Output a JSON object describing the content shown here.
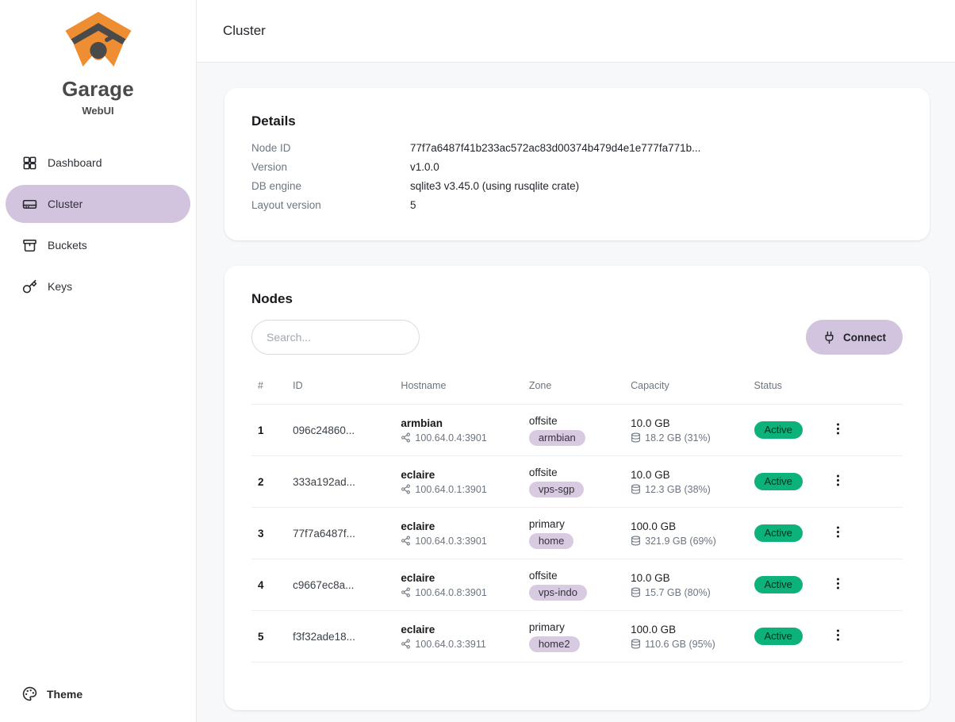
{
  "sidebar": {
    "logo_title": "Garage",
    "logo_subtitle": "WebUI",
    "items": [
      {
        "label": "Dashboard",
        "icon": "dashboard-grid-icon",
        "active": false
      },
      {
        "label": "Cluster",
        "icon": "hard-drive-icon",
        "active": true
      },
      {
        "label": "Buckets",
        "icon": "archive-box-icon",
        "active": false
      },
      {
        "label": "Keys",
        "icon": "key-icon",
        "active": false
      }
    ],
    "theme_label": "Theme",
    "theme_icon": "palette-icon"
  },
  "header": {
    "title": "Cluster"
  },
  "details": {
    "heading": "Details",
    "rows": [
      {
        "label": "Node ID",
        "value": "77f7a6487f41b233ac572ac83d00374b479d4e1e777fa771b..."
      },
      {
        "label": "Version",
        "value": "v1.0.0"
      },
      {
        "label": "DB engine",
        "value": "sqlite3 v3.45.0 (using rusqlite crate)"
      },
      {
        "label": "Layout version",
        "value": "5"
      }
    ]
  },
  "nodes": {
    "heading": "Nodes",
    "search_placeholder": "Search...",
    "connect_label": "Connect",
    "connect_icon": "plug-icon",
    "table": {
      "columns": [
        "#",
        "ID",
        "Hostname",
        "Zone",
        "Capacity",
        "Status"
      ],
      "row_icons": {
        "address": "share-network-icon",
        "usage": "database-icon",
        "actions": "kebab-menu-icon"
      },
      "rows": [
        {
          "num": "1",
          "id": "096c24860...",
          "hostname": "armbian",
          "address": "100.64.0.4:3901",
          "zone": "offsite",
          "zone_tag": "armbian",
          "capacity": "10.0 GB",
          "usage": "18.2 GB (31%)",
          "status": "Active"
        },
        {
          "num": "2",
          "id": "333a192ad...",
          "hostname": "eclaire",
          "address": "100.64.0.1:3901",
          "zone": "offsite",
          "zone_tag": "vps-sgp",
          "capacity": "10.0 GB",
          "usage": "12.3 GB (38%)",
          "status": "Active"
        },
        {
          "num": "3",
          "id": "77f7a6487f...",
          "hostname": "eclaire",
          "address": "100.64.0.3:3901",
          "zone": "primary",
          "zone_tag": "home",
          "capacity": "100.0 GB",
          "usage": "321.9 GB (69%)",
          "status": "Active"
        },
        {
          "num": "4",
          "id": "c9667ec8a...",
          "hostname": "eclaire",
          "address": "100.64.0.8:3901",
          "zone": "offsite",
          "zone_tag": "vps-indo",
          "capacity": "10.0 GB",
          "usage": "15.7 GB (80%)",
          "status": "Active"
        },
        {
          "num": "5",
          "id": "f3f32ade18...",
          "hostname": "eclaire",
          "address": "100.64.0.3:3911",
          "zone": "primary",
          "zone_tag": "home2",
          "capacity": "100.0 GB",
          "usage": "110.6 GB (95%)",
          "status": "Active"
        }
      ]
    }
  },
  "colors": {
    "accent_lavender": "#d2c3de",
    "zone_badge_lavender": "#d7cae1",
    "success_green": "#0cb279",
    "brand_orange": "#ef8d33",
    "brand_gray": "#4a4a4a"
  }
}
